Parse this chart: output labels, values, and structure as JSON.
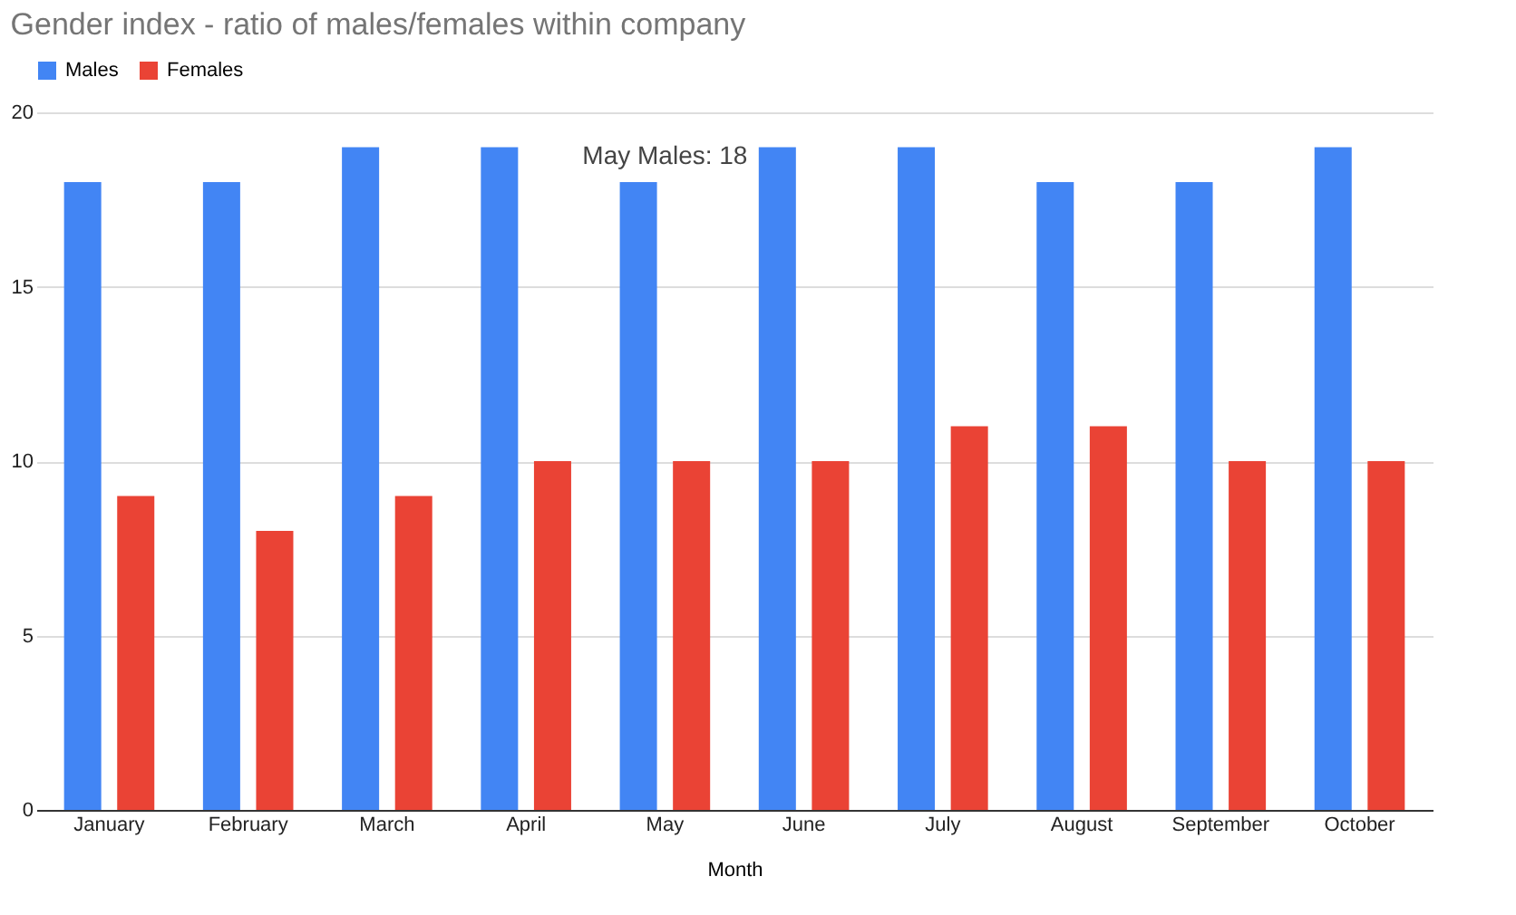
{
  "chart_data": {
    "type": "bar",
    "title": "Gender index - ratio of males/females within company",
    "xlabel": "Month",
    "categories": [
      "January",
      "February",
      "March",
      "April",
      "May",
      "June",
      "July",
      "August",
      "September",
      "October"
    ],
    "series": [
      {
        "name": "Males",
        "color": "#4285f4",
        "values": [
          18,
          18,
          19,
          19,
          18,
          19,
          19,
          18,
          18,
          19
        ]
      },
      {
        "name": "Females",
        "color": "#ea4335",
        "values": [
          9,
          8,
          9,
          10,
          10,
          10,
          11,
          11,
          10,
          10
        ]
      }
    ],
    "ylim": [
      0,
      20
    ],
    "yticks": [
      0,
      5,
      10,
      15,
      20
    ],
    "grid": "y",
    "legend": "top",
    "annotations": [
      {
        "text": "May Males: 18",
        "x": "May",
        "y": 18
      }
    ]
  }
}
